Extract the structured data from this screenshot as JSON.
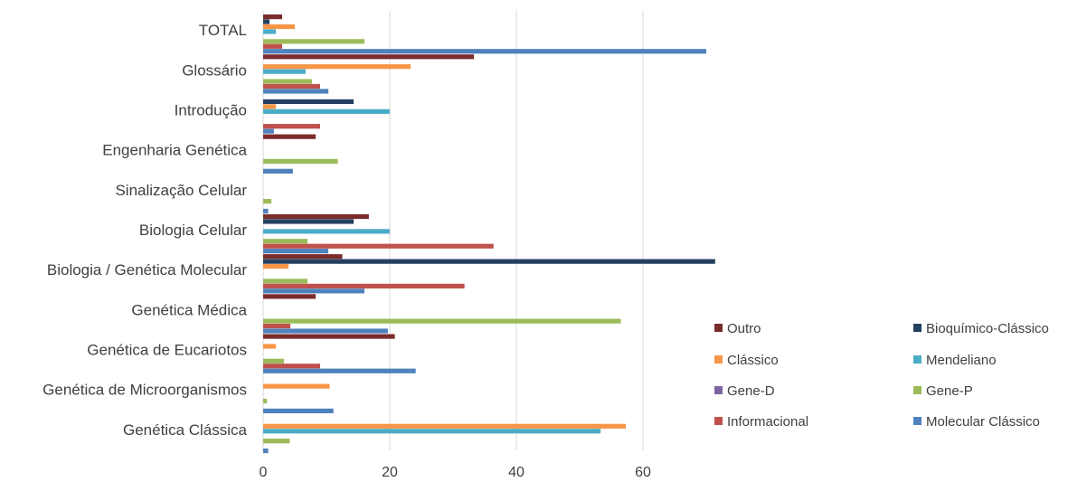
{
  "chart_data": {
    "type": "bar",
    "orientation": "horizontal",
    "title": "",
    "xlabel": "",
    "ylabel": "",
    "xlim": [
      0,
      72
    ],
    "x_ticks": [
      0,
      20,
      40,
      60
    ],
    "grid": "vertical",
    "legend_position": "bottom-right",
    "categories": [
      "TOTAL",
      "Glossário",
      "Introdução",
      "Engenharia Genética",
      "Sinalização Celular",
      "Biologia Celular",
      "Biologia / Genética Molecular",
      "Genética Médica",
      "Genética de Eucariotos",
      "Genética de Microorganismos",
      "Genética Clássica"
    ],
    "series": [
      {
        "name": "Outro",
        "color": "#7B2C2C",
        "values": [
          3,
          33.3,
          0,
          8.3,
          0,
          16.7,
          12.5,
          8.3,
          20.8,
          0,
          0
        ]
      },
      {
        "name": "Bioquímico-Clássico",
        "color": "#243F60",
        "values": [
          1,
          0,
          14.3,
          0,
          0,
          14.3,
          71.4,
          0,
          0,
          0,
          0
        ]
      },
      {
        "name": "Clássico",
        "color": "#F79646",
        "values": [
          5,
          23.3,
          2,
          0,
          0,
          0,
          4,
          0,
          2,
          10.5,
          57.3
        ]
      },
      {
        "name": "Mendeliano",
        "color": "#4BACC6",
        "values": [
          2,
          6.7,
          20,
          0,
          0,
          20,
          0,
          0,
          0,
          0,
          53.3
        ]
      },
      {
        "name": "Gene-D",
        "color": "#8064A2",
        "values": [
          0,
          0,
          0,
          0,
          0,
          0,
          0,
          0,
          0,
          0,
          0
        ]
      },
      {
        "name": "Gene-P",
        "color": "#9BBB59",
        "values": [
          16,
          7.7,
          0,
          11.8,
          1.3,
          7,
          7,
          56.5,
          3.3,
          0.6,
          4.2
        ]
      },
      {
        "name": "Informacional",
        "color": "#C0504D",
        "values": [
          3,
          9,
          9,
          0,
          0,
          36.4,
          31.8,
          4.3,
          9,
          0,
          0
        ]
      },
      {
        "name": "Molecular Clássico",
        "color": "#4F81BD",
        "values": [
          70,
          10.3,
          1.7,
          4.7,
          0.8,
          10.3,
          16,
          19.7,
          24.1,
          11.1,
          0.8
        ]
      }
    ]
  }
}
